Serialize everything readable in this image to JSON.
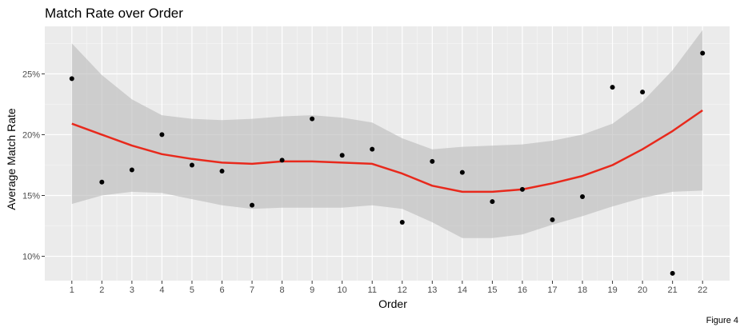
{
  "chart_data": {
    "type": "scatter",
    "title": "Match Rate over Order",
    "xlabel": "Order",
    "ylabel": "Average Match Rate",
    "caption": "Figure 4",
    "x_ticks": [
      "1",
      "2",
      "3",
      "4",
      "5",
      "6",
      "7",
      "8",
      "9",
      "10",
      "11",
      "12",
      "13",
      "14",
      "15",
      "16",
      "17",
      "18",
      "19",
      "20",
      "21",
      "22"
    ],
    "y_ticks": [
      "10%",
      "15%",
      "20%",
      "25%"
    ],
    "xlim": [
      0.1,
      22.9
    ],
    "ylim": [
      8.0,
      28.9
    ],
    "grid": true,
    "points": {
      "x": [
        1,
        2,
        3,
        4,
        5,
        6,
        7,
        8,
        9,
        10,
        11,
        12,
        13,
        14,
        15,
        16,
        17,
        18,
        19,
        20,
        21,
        22
      ],
      "y": [
        24.6,
        16.1,
        17.1,
        20.0,
        17.5,
        17.0,
        14.2,
        17.9,
        21.3,
        18.3,
        18.8,
        12.8,
        17.8,
        16.9,
        14.5,
        15.5,
        13.0,
        14.9,
        23.9,
        23.5,
        8.6,
        26.7
      ]
    },
    "smooth": {
      "x": [
        1,
        2,
        3,
        4,
        5,
        6,
        7,
        8,
        9,
        10,
        11,
        12,
        13,
        14,
        15,
        16,
        17,
        18,
        19,
        20,
        21,
        22
      ],
      "y": [
        20.9,
        20.0,
        19.1,
        18.4,
        18.0,
        17.7,
        17.6,
        17.8,
        17.8,
        17.7,
        17.6,
        16.8,
        15.8,
        15.3,
        15.3,
        15.5,
        16.0,
        16.6,
        17.5,
        18.8,
        20.3,
        22.0
      ],
      "lower": [
        14.3,
        15.0,
        15.3,
        15.2,
        14.7,
        14.2,
        13.9,
        14.0,
        14.0,
        14.0,
        14.2,
        13.9,
        12.8,
        11.5,
        11.5,
        11.8,
        12.6,
        13.3,
        14.1,
        14.8,
        15.3,
        15.4
      ],
      "upper": [
        27.5,
        24.9,
        22.9,
        21.6,
        21.3,
        21.2,
        21.3,
        21.5,
        21.6,
        21.4,
        21.0,
        19.7,
        18.8,
        19.0,
        19.1,
        19.2,
        19.5,
        20.0,
        20.9,
        22.7,
        25.3,
        28.6
      ]
    },
    "colors": {
      "panel": "#ebebeb",
      "grid_major": "#ffffff",
      "grid_minor": "#f5f5f5",
      "ribbon": "#bdbdbd",
      "line": "#e8291c",
      "point": "#000000"
    }
  }
}
